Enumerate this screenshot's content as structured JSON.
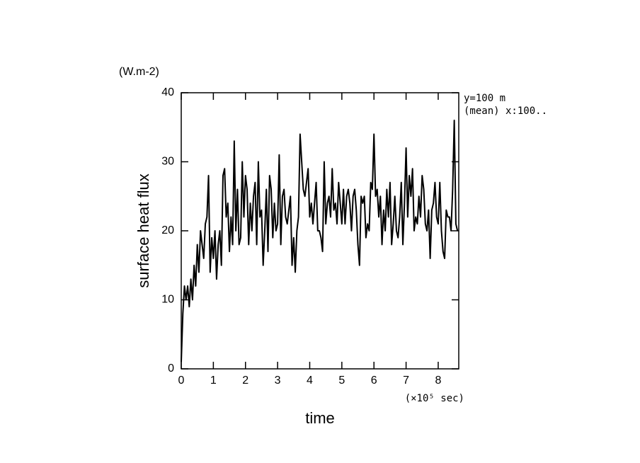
{
  "chart_data": {
    "type": "line",
    "ylabel": "surface heat flux",
    "xlabel": "time",
    "y_unit": "(W.m-2)",
    "x_unit": "(×10⁵ sec)",
    "annotations": [
      "y=100 m",
      "(mean) x:100.."
    ],
    "xlim": [
      0,
      8.64
    ],
    "ylim": [
      0,
      40
    ],
    "xticks": [
      0,
      1,
      2,
      3,
      4,
      5,
      6,
      7,
      8
    ],
    "yticks": [
      0,
      10,
      20,
      30,
      40
    ],
    "grid": false,
    "series": [
      {
        "color": "#000000",
        "x": [
          0,
          0.05,
          0.1,
          0.15,
          0.2,
          0.25,
          0.3,
          0.35,
          0.4,
          0.45,
          0.5,
          0.55,
          0.6,
          0.65,
          0.7,
          0.75,
          0.8,
          0.85,
          0.9,
          0.95,
          1,
          1.05,
          1.1,
          1.15,
          1.2,
          1.25,
          1.3,
          1.35,
          1.4,
          1.45,
          1.5,
          1.55,
          1.6,
          1.65,
          1.7,
          1.75,
          1.8,
          1.85,
          1.9,
          1.95,
          2,
          2.05,
          2.1,
          2.15,
          2.2,
          2.25,
          2.3,
          2.35,
          2.4,
          2.45,
          2.5,
          2.55,
          2.6,
          2.65,
          2.7,
          2.75,
          2.8,
          2.85,
          2.9,
          2.95,
          3,
          3.05,
          3.1,
          3.15,
          3.2,
          3.25,
          3.3,
          3.35,
          3.4,
          3.45,
          3.5,
          3.55,
          3.6,
          3.65,
          3.7,
          3.75,
          3.8,
          3.85,
          3.9,
          3.95,
          4,
          4.05,
          4.1,
          4.15,
          4.2,
          4.25,
          4.3,
          4.35,
          4.4,
          4.45,
          4.5,
          4.55,
          4.6,
          4.65,
          4.7,
          4.75,
          4.8,
          4.85,
          4.9,
          4.95,
          5,
          5.05,
          5.1,
          5.15,
          5.2,
          5.25,
          5.3,
          5.35,
          5.4,
          5.45,
          5.5,
          5.55,
          5.6,
          5.65,
          5.7,
          5.75,
          5.8,
          5.85,
          5.9,
          5.95,
          6,
          6.05,
          6.1,
          6.15,
          6.2,
          6.25,
          6.3,
          6.35,
          6.4,
          6.45,
          6.5,
          6.55,
          6.6,
          6.65,
          6.7,
          6.75,
          6.8,
          6.85,
          6.9,
          6.95,
          7,
          7.05,
          7.1,
          7.15,
          7.2,
          7.25,
          7.3,
          7.35,
          7.4,
          7.45,
          7.5,
          7.55,
          7.6,
          7.65,
          7.7,
          7.75,
          7.8,
          7.85,
          7.9,
          7.95,
          8,
          8.05,
          8.1,
          8.15,
          8.2,
          8.25,
          8.3,
          8.35,
          8.4,
          8.45,
          8.5,
          8.55,
          8.6
        ],
        "values": [
          1,
          8,
          12,
          10,
          12,
          9,
          13,
          10,
          15,
          12,
          18,
          14,
          20,
          18,
          16,
          21,
          22,
          28,
          14,
          19,
          16,
          20,
          13,
          18,
          20,
          15,
          28,
          29,
          22,
          24,
          17,
          22,
          18,
          33,
          20,
          26,
          18,
          19,
          30,
          22,
          28,
          26,
          18,
          24,
          20,
          25,
          27,
          18,
          30,
          22,
          23,
          15,
          20,
          26,
          17,
          28,
          26,
          19,
          24,
          20,
          21,
          31,
          18,
          25,
          26,
          22,
          21,
          23,
          25,
          15,
          19,
          14,
          20,
          22,
          34,
          30,
          26,
          25,
          27,
          29,
          22,
          24,
          21,
          24,
          27,
          20,
          20,
          19,
          17,
          30,
          21,
          24,
          25,
          22,
          29,
          23,
          24,
          21,
          27,
          24,
          21,
          26,
          21,
          25,
          26,
          24,
          20,
          25,
          26,
          23,
          18,
          15,
          25,
          24,
          25,
          19,
          21,
          20,
          27,
          26,
          34,
          25,
          26,
          22,
          25,
          18,
          23,
          20,
          26,
          22,
          27,
          18,
          21,
          25,
          20,
          19,
          22,
          27,
          18,
          24,
          32,
          22,
          28,
          25,
          29,
          20,
          22,
          21,
          25,
          22,
          28,
          26,
          21,
          20,
          23,
          16,
          23,
          24,
          27,
          22,
          21,
          27,
          20,
          17,
          16,
          23,
          22,
          22,
          20,
          26,
          36,
          21,
          20
        ]
      }
    ]
  }
}
